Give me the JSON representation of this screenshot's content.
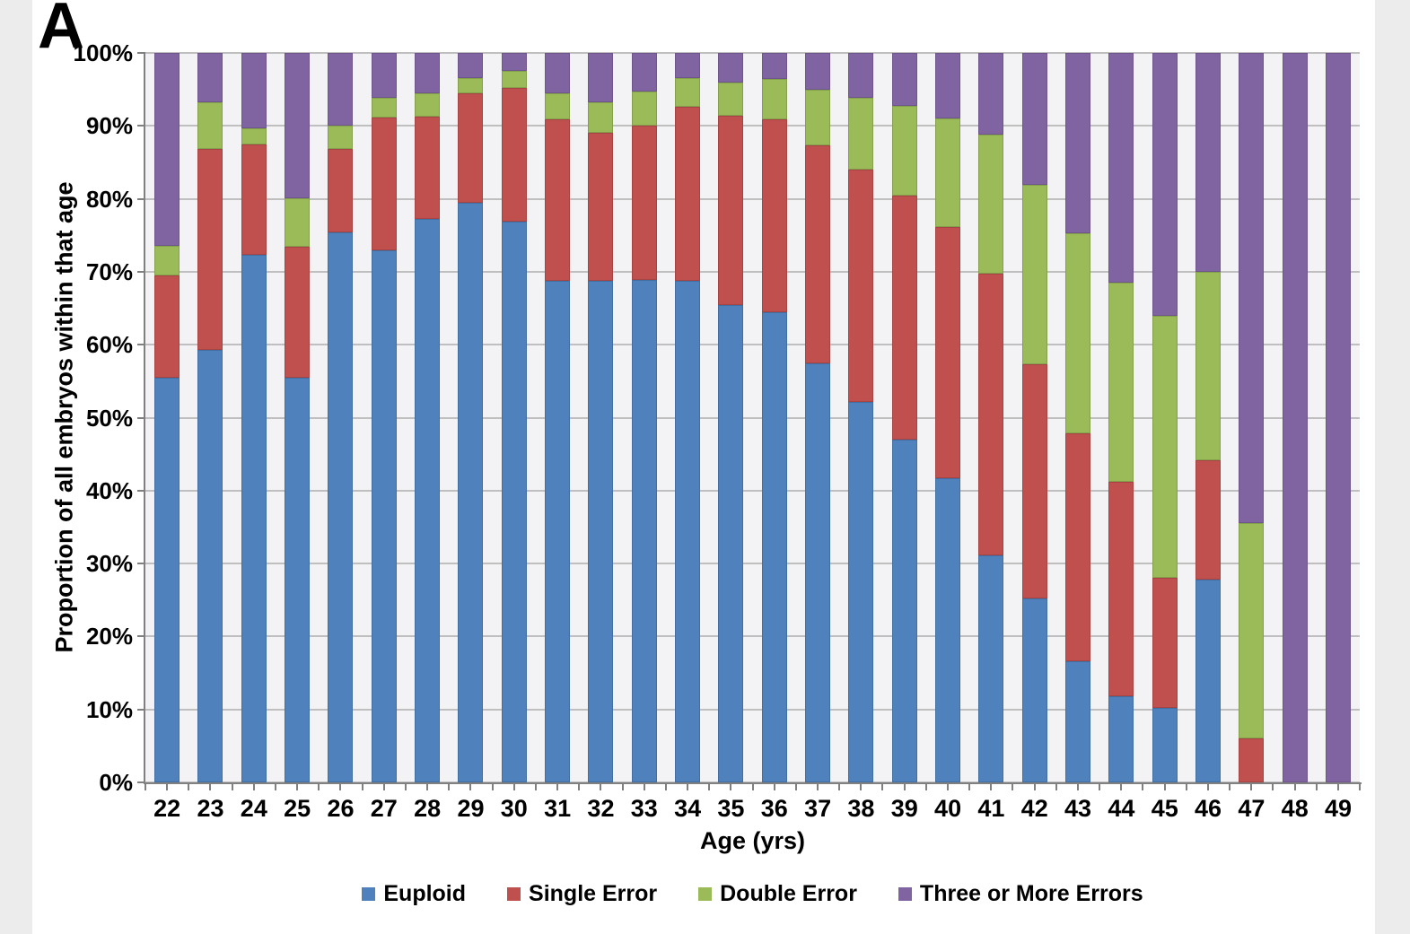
{
  "panel_label": "A",
  "axes": {
    "y_title": "Proportion of all embryos within that age",
    "x_title": "Age (yrs)",
    "y_tick_labels": [
      "100%",
      "90%",
      "80%",
      "70%",
      "60%",
      "50%",
      "40%",
      "30%",
      "20%",
      "10%",
      "0%"
    ]
  },
  "legend": {
    "items": [
      {
        "label": "Euploid",
        "color": "#4F81BD"
      },
      {
        "label": "Single Error",
        "color": "#C0504D"
      },
      {
        "label": "Double Error",
        "color": "#9BBB59"
      },
      {
        "label": "Three or More Errors",
        "color": "#8064A2"
      }
    ]
  },
  "colors": {
    "page_bg": "#ECECEC",
    "figure_bg": "#FFFFFF",
    "plot_bg": "#F3F3F5",
    "gridline": "#BFBFBF",
    "axis": "#808080",
    "euploid": "#4F81BD",
    "single_error": "#C0504D",
    "double_error": "#9BBB59",
    "three_or_more": "#8064A2"
  },
  "chart_data": {
    "type": "bar",
    "stacked": true,
    "xlabel": "Age (yrs)",
    "ylabel": "Proportion of all embryos within that age",
    "ylim": [
      0,
      100
    ],
    "y_tick_step": 10,
    "y_tick_format": "percent",
    "grid": true,
    "legend_position": "bottom",
    "categories": [
      "22",
      "23",
      "24",
      "25",
      "26",
      "27",
      "28",
      "29",
      "30",
      "31",
      "32",
      "33",
      "34",
      "35",
      "36",
      "37",
      "38",
      "39",
      "40",
      "41",
      "42",
      "43",
      "44",
      "45",
      "46",
      "47",
      "48",
      "49"
    ],
    "series": [
      {
        "name": "Euploid",
        "color": "#4F81BD",
        "values": [
          55.5,
          59.3,
          72.3,
          55.5,
          75.4,
          72.9,
          77.2,
          79.4,
          76.9,
          68.8,
          68.8,
          68.9,
          68.8,
          65.4,
          64.5,
          57.4,
          52.1,
          47.0,
          41.7,
          31.1,
          25.2,
          16.6,
          11.8,
          10.2,
          27.8,
          0,
          0,
          0
        ]
      },
      {
        "name": "Single Error",
        "color": "#C0504D",
        "values": [
          14.0,
          27.5,
          15.1,
          17.9,
          11.5,
          18.3,
          14.1,
          15.1,
          18.3,
          22.1,
          20.3,
          21.2,
          23.8,
          26.0,
          26.4,
          29.9,
          31.9,
          33.5,
          34.5,
          38.7,
          32.1,
          31.2,
          29.4,
          17.9,
          16.4,
          6.0,
          0,
          0
        ]
      },
      {
        "name": "Double Error",
        "color": "#9BBB59",
        "values": [
          4.0,
          6.5,
          2.3,
          6.7,
          3.2,
          2.7,
          3.2,
          2.0,
          2.4,
          3.6,
          4.1,
          4.6,
          3.9,
          4.6,
          5.5,
          7.6,
          9.9,
          12.3,
          14.8,
          19.0,
          24.6,
          27.5,
          27.3,
          35.9,
          25.8,
          29.5,
          0,
          0
        ]
      },
      {
        "name": "Three or More Errors",
        "color": "#8064A2",
        "values": [
          26.5,
          6.7,
          10.3,
          19.9,
          9.9,
          6.1,
          5.5,
          3.5,
          2.4,
          5.5,
          6.8,
          5.3,
          3.5,
          4.0,
          3.6,
          5.1,
          6.1,
          7.2,
          9.0,
          11.2,
          18.1,
          24.7,
          31.5,
          36.0,
          30.0,
          64.5,
          100,
          100
        ]
      }
    ]
  }
}
